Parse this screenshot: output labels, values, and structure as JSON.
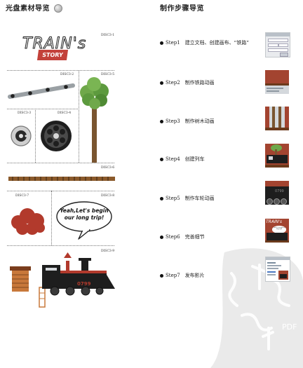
{
  "header": {
    "left_title": "光盘素材导览",
    "right_title": "制作步骤导览"
  },
  "materials": {
    "codes": [
      "DISC3-1",
      "DISC3-2",
      "DISC3-3",
      "DISC3-4",
      "DISC3-5",
      "DISC3-6",
      "DISC3-7",
      "DISC3-8",
      "DISC3-9"
    ],
    "title_word": "TRAIN's",
    "title_banner": "STORY",
    "speech_line1": "Yeah,Let's begin",
    "speech_line2": "our long trip!",
    "train_number": "0799"
  },
  "steps": [
    {
      "num": "Step1",
      "label": "建立文档、创建画布、“铁路”"
    },
    {
      "num": "Step2",
      "label": "制作铁路动画"
    },
    {
      "num": "Step3",
      "label": "制作树木动画"
    },
    {
      "num": "Step4",
      "label": "创建列车"
    },
    {
      "num": "Step5",
      "label": "制作车轮动画"
    },
    {
      "num": "Step6",
      "label": "完善细节"
    },
    {
      "num": "Step7",
      "label": "发布影片"
    }
  ],
  "thumbs": {
    "t5_number": "0799",
    "t6_title": "TRAIN's",
    "t6_bubble": "Yeah,Let's begin our long trip!"
  },
  "watermark": {
    "text": "PDF"
  },
  "colors": {
    "brick": "#a34430",
    "dark": "#1e1e1e",
    "red": "#b23a2c",
    "tree_green": "#5d9a3e",
    "trunk": "#7a5530",
    "rail_brown": "#8b5a2b",
    "panel_gray": "#d4d8dc"
  },
  "icons": [
    "disc-icon",
    "step-bullet-icon"
  ]
}
